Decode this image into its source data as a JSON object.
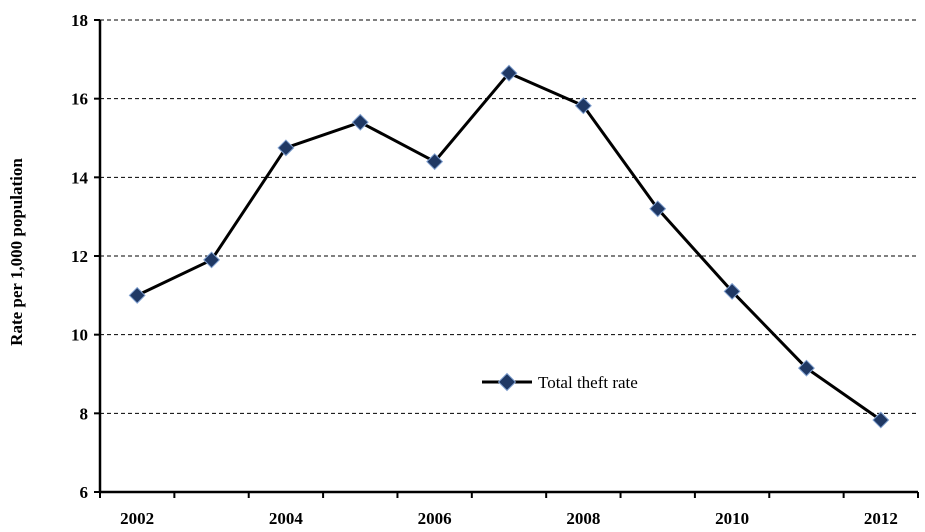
{
  "chart_data": {
    "type": "line",
    "title": "",
    "xlabel": "",
    "ylabel": "Rate per 1,000 population",
    "x_tick_labels": [
      "2002",
      "2004",
      "2006",
      "2008",
      "2010",
      "2012"
    ],
    "y_ticks": [
      6,
      8,
      10,
      12,
      14,
      16,
      18
    ],
    "ylim": [
      6,
      18
    ],
    "grid": "horizontal dashed",
    "legend_position": "center-bottom",
    "series": [
      {
        "name": "Total theft rate",
        "color": "#000000",
        "marker_color": "#1f3864",
        "x": [
          2002,
          2003,
          2004,
          2005,
          2006,
          2007,
          2008,
          2009,
          2010,
          2011,
          2012
        ],
        "values": [
          11.0,
          11.9,
          14.75,
          15.4,
          14.4,
          16.65,
          15.82,
          13.2,
          11.1,
          9.15,
          7.83
        ]
      }
    ]
  }
}
